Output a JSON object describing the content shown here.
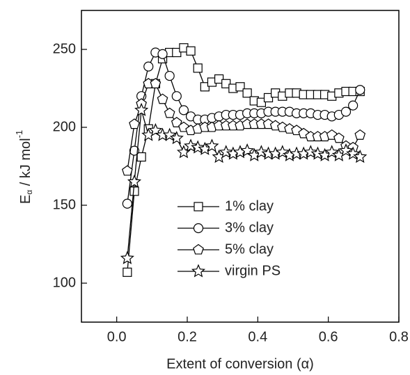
{
  "chart_data": {
    "type": "line",
    "x_label": "Extent of conversion (α)",
    "y_label": [
      "E",
      "α",
      " / kJ mol",
      "-1"
    ],
    "x": [
      0.03,
      0.05,
      0.07,
      0.09,
      0.11,
      0.13,
      0.15,
      0.17,
      0.19,
      0.21,
      0.23,
      0.25,
      0.27,
      0.29,
      0.31,
      0.33,
      0.35,
      0.37,
      0.39,
      0.41,
      0.43,
      0.45,
      0.47,
      0.49,
      0.51,
      0.53,
      0.55,
      0.57,
      0.59,
      0.61,
      0.63,
      0.65,
      0.67,
      0.69
    ],
    "series": [
      {
        "name": "1% clay",
        "color": "#000000",
        "marker": "square",
        "values": [
          107,
          159,
          181,
          199,
          228,
          244,
          248,
          248,
          251,
          249,
          238,
          226,
          229,
          231,
          228,
          225,
          226,
          222,
          217,
          216,
          219,
          222,
          220,
          222,
          222,
          221,
          221,
          221,
          221,
          220,
          222,
          223,
          223,
          223
        ]
      },
      {
        "name": "3% clay",
        "color": "#000000",
        "marker": "circle",
        "values": [
          151,
          185,
          220,
          239,
          248,
          247,
          233,
          220,
          211,
          207,
          205,
          205,
          206,
          207,
          208,
          208,
          208,
          209,
          209,
          209,
          210,
          210,
          210,
          210,
          209,
          209,
          209,
          208,
          208,
          207,
          208,
          210,
          214,
          224
        ]
      },
      {
        "name": "5% clay",
        "color": "#000000",
        "marker": "pentagon",
        "values": [
          172,
          202,
          215,
          228,
          228,
          218,
          209,
          203,
          200,
          198,
          199,
          200,
          200,
          201,
          201,
          201,
          201,
          202,
          202,
          202,
          202,
          201,
          200,
          199,
          198,
          196,
          194,
          194,
          194,
          195,
          193,
          188,
          187,
          195
        ]
      },
      {
        "name": "virgin PS",
        "color": "#000000",
        "marker": "star",
        "values": [
          116,
          165,
          211,
          195,
          198,
          195,
          195,
          193,
          184,
          188,
          187,
          186,
          188,
          181,
          184,
          183,
          184,
          185,
          182,
          184,
          183,
          183,
          184,
          182,
          183,
          183,
          184,
          183,
          182,
          184,
          182,
          185,
          183,
          181
        ]
      }
    ],
    "xlim": [
      -0.1,
      0.8
    ],
    "ylim": [
      75,
      275
    ],
    "xticks": [
      {
        "value": 0,
        "label": "0.0"
      },
      0.2,
      0.4,
      0.6,
      0.8
    ],
    "yticks": [
      100,
      150,
      200,
      250
    ],
    "legend": "center left",
    "grid": false
  }
}
